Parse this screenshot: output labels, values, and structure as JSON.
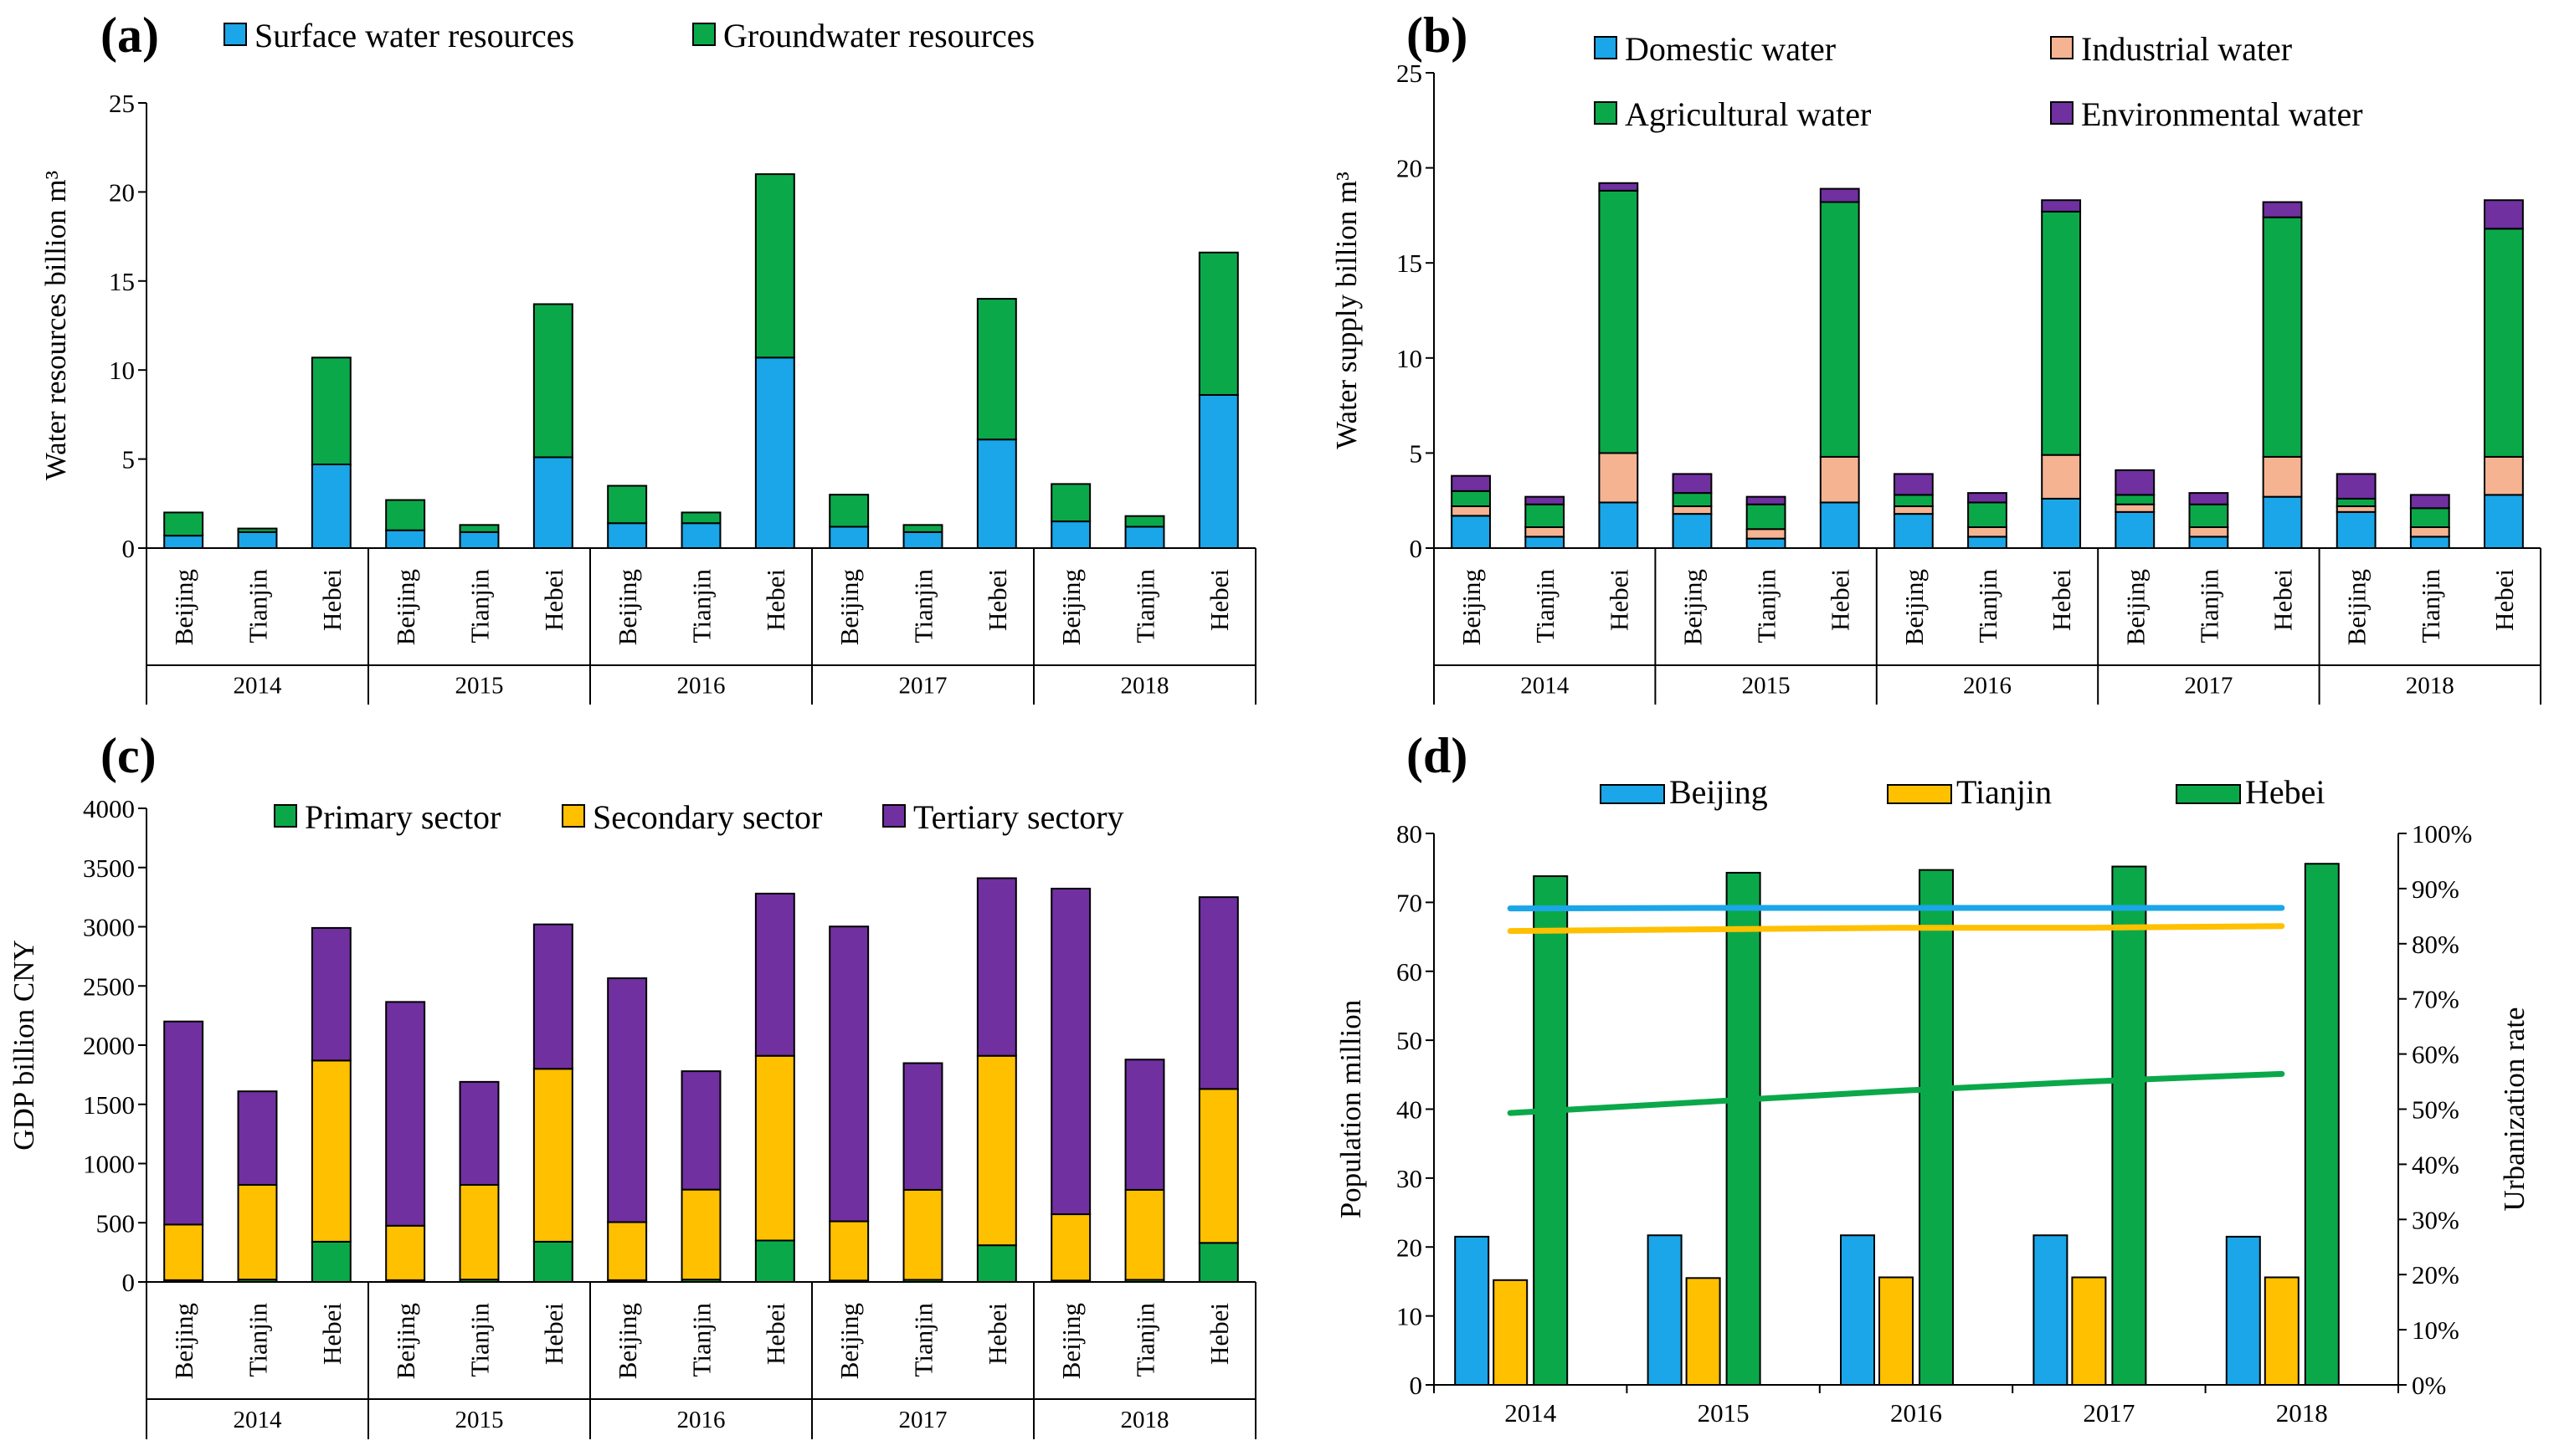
{
  "colors": {
    "surface": "#1aa6e8",
    "groundwater": "#0ba84a",
    "domestic": "#1aa6e8",
    "industrial": "#f5b392",
    "agricultural": "#0ba84a",
    "environmental": "#7030a0",
    "primary": "#0ba84a",
    "secondary": "#ffc000",
    "tertiary": "#7030a0",
    "beijing": "#1aa6e8",
    "tianjin": "#ffc000",
    "hebei": "#0ba84a"
  },
  "chart_data": [
    {
      "panel": "(a)",
      "type": "bar",
      "stacked": true,
      "ylabel": "Water resources billion m³",
      "ylim": [
        0,
        25
      ],
      "yticks": [
        0,
        5,
        10,
        15,
        20,
        25
      ],
      "years": [
        "2014",
        "2015",
        "2016",
        "2017",
        "2018"
      ],
      "regions": [
        "Beijing",
        "Tianjin",
        "Hebei"
      ],
      "series": [
        {
          "name": "Surface water resources",
          "color_key": "surface",
          "values": [
            0.7,
            0.9,
            4.7,
            1.0,
            0.9,
            5.1,
            1.4,
            1.4,
            10.7,
            1.2,
            0.9,
            6.1,
            1.5,
            1.2,
            8.6
          ]
        },
        {
          "name": "Groundwater resources",
          "color_key": "groundwater",
          "values": [
            1.3,
            0.2,
            6.0,
            1.7,
            0.4,
            8.6,
            2.1,
            0.6,
            10.3,
            1.8,
            0.4,
            7.9,
            2.1,
            0.6,
            8.0
          ]
        }
      ],
      "legend_position": "top"
    },
    {
      "panel": "(b)",
      "type": "bar",
      "stacked": true,
      "ylabel": "Water supply billion m³",
      "ylim": [
        0,
        25
      ],
      "yticks": [
        0,
        5,
        10,
        15,
        20,
        25
      ],
      "years": [
        "2014",
        "2015",
        "2016",
        "2017",
        "2018"
      ],
      "regions": [
        "Beijing",
        "Tianjin",
        "Hebei"
      ],
      "series": [
        {
          "name": "Domestic water",
          "color_key": "domestic",
          "values": [
            1.7,
            0.6,
            2.4,
            1.8,
            0.5,
            2.4,
            1.8,
            0.6,
            2.6,
            1.9,
            0.6,
            2.7,
            1.9,
            0.6,
            2.8
          ]
        },
        {
          "name": "Industrial water",
          "color_key": "industrial",
          "values": [
            0.5,
            0.5,
            2.6,
            0.4,
            0.5,
            2.4,
            0.4,
            0.5,
            2.3,
            0.4,
            0.5,
            2.1,
            0.3,
            0.5,
            2.0
          ]
        },
        {
          "name": "Agricultural water",
          "color_key": "agricultural",
          "values": [
            0.8,
            1.2,
            13.8,
            0.7,
            1.3,
            13.4,
            0.6,
            1.3,
            12.8,
            0.5,
            1.2,
            12.6,
            0.4,
            1.0,
            12.0
          ]
        },
        {
          "name": "Environmental water",
          "color_key": "environmental",
          "values": [
            0.8,
            0.4,
            0.4,
            1.0,
            0.4,
            0.7,
            1.1,
            0.5,
            0.6,
            1.3,
            0.6,
            0.8,
            1.3,
            0.7,
            1.5
          ]
        }
      ],
      "legend_position": "top"
    },
    {
      "panel": "(c)",
      "type": "bar",
      "stacked": true,
      "ylabel": "GDP billion CNY",
      "ylim": [
        0,
        4000
      ],
      "yticks": [
        0,
        500,
        1000,
        1500,
        2000,
        2500,
        3000,
        3500,
        4000
      ],
      "years": [
        "2014",
        "2015",
        "2016",
        "2017",
        "2018"
      ],
      "regions": [
        "Beijing",
        "Tianjin",
        "Hebei"
      ],
      "series": [
        {
          "name": "Primary sector",
          "color_key": "primary",
          "values": [
            15,
            20,
            340,
            15,
            20,
            340,
            15,
            20,
            350,
            12,
            18,
            310,
            12,
            18,
            330
          ]
        },
        {
          "name": "Secondary sector",
          "color_key": "secondary",
          "values": [
            470,
            800,
            1530,
            460,
            800,
            1460,
            490,
            760,
            1560,
            500,
            760,
            1600,
            560,
            760,
            1300
          ]
        },
        {
          "name": "Tertiary sectory",
          "color_key": "tertiary",
          "values": [
            1715,
            790,
            1120,
            1890,
            870,
            1220,
            2060,
            1000,
            1370,
            2490,
            1070,
            1500,
            2750,
            1100,
            1620
          ]
        }
      ],
      "legend_position": "top"
    },
    {
      "panel": "(d)",
      "type": "bar+line",
      "x": [
        "2014",
        "2015",
        "2016",
        "2017",
        "2018"
      ],
      "ylabel": "Population million",
      "ylim": [
        0,
        80
      ],
      "yticks": [
        0,
        10,
        20,
        30,
        40,
        50,
        60,
        70,
        80
      ],
      "y2label": "Urbanization rate",
      "y2lim": [
        0,
        100
      ],
      "y2ticks": [
        "0%",
        "10%",
        "20%",
        "30%",
        "40%",
        "50%",
        "60%",
        "70%",
        "80%",
        "90%",
        "100%"
      ],
      "series": [
        {
          "name": "Beijing",
          "color_key": "beijing",
          "population": [
            21.5,
            21.7,
            21.7,
            21.7,
            21.5
          ],
          "urbanization": [
            86.4,
            86.5,
            86.5,
            86.5,
            86.5
          ]
        },
        {
          "name": "Tianjin",
          "color_key": "tianjin",
          "population": [
            15.2,
            15.5,
            15.6,
            15.6,
            15.6
          ],
          "urbanization": [
            82.3,
            82.6,
            82.9,
            82.9,
            83.2
          ]
        },
        {
          "name": "Hebei",
          "color_key": "hebei",
          "population": [
            73.8,
            74.3,
            74.7,
            75.2,
            75.6
          ],
          "urbanization": [
            49.3,
            51.3,
            53.3,
            55.0,
            56.4
          ]
        }
      ],
      "legend_position": "top"
    }
  ]
}
